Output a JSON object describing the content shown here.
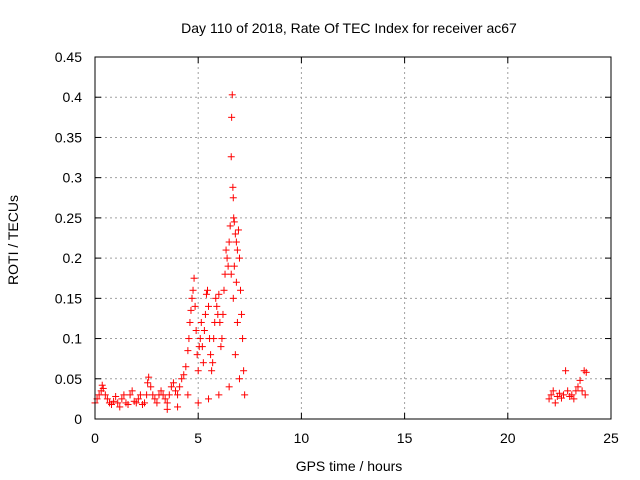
{
  "chart_data": {
    "type": "scatter",
    "title": "Day 110 of 2018, Rate Of TEC Index for receiver ac67",
    "xlabel": "GPS time / hours",
    "ylabel": "ROTI / TECUs",
    "xlim": [
      0,
      25
    ],
    "ylim": [
      0,
      0.45
    ],
    "x_ticks": [
      0,
      5,
      10,
      15,
      20,
      25
    ],
    "y_ticks": [
      0,
      0.05,
      0.1,
      0.15,
      0.2,
      0.25,
      0.3,
      0.35,
      0.4,
      0.45
    ],
    "x_tick_labels": [
      "0",
      "5",
      "10",
      "15",
      "20",
      "25"
    ],
    "y_tick_labels": [
      "0",
      "0.05",
      "0.1",
      "0.15",
      "0.2",
      "0.25",
      "0.3",
      "0.35",
      "0.4",
      "0.45"
    ],
    "grid": true,
    "marker": "+",
    "series_color": "#ff0000",
    "series": [
      {
        "name": "ROTI",
        "points": [
          [
            0.0,
            0.02
          ],
          [
            0.1,
            0.025
          ],
          [
            0.2,
            0.03
          ],
          [
            0.3,
            0.035
          ],
          [
            0.35,
            0.042
          ],
          [
            0.4,
            0.038
          ],
          [
            0.5,
            0.03
          ],
          [
            0.6,
            0.025
          ],
          [
            0.7,
            0.02
          ],
          [
            0.8,
            0.018
          ],
          [
            0.9,
            0.022
          ],
          [
            1.0,
            0.028
          ],
          [
            1.1,
            0.02
          ],
          [
            1.2,
            0.015
          ],
          [
            1.3,
            0.025
          ],
          [
            1.4,
            0.03
          ],
          [
            1.5,
            0.02
          ],
          [
            1.6,
            0.018
          ],
          [
            1.7,
            0.03
          ],
          [
            1.8,
            0.035
          ],
          [
            1.9,
            0.022
          ],
          [
            2.0,
            0.02
          ],
          [
            2.1,
            0.025
          ],
          [
            2.2,
            0.03
          ],
          [
            2.3,
            0.018
          ],
          [
            2.4,
            0.02
          ],
          [
            2.5,
            0.03
          ],
          [
            2.55,
            0.045
          ],
          [
            2.6,
            0.052
          ],
          [
            2.7,
            0.04
          ],
          [
            2.8,
            0.03
          ],
          [
            2.9,
            0.025
          ],
          [
            3.0,
            0.02
          ],
          [
            3.1,
            0.03
          ],
          [
            3.2,
            0.035
          ],
          [
            3.3,
            0.03
          ],
          [
            3.4,
            0.025
          ],
          [
            3.5,
            0.02
          ],
          [
            3.6,
            0.03
          ],
          [
            3.7,
            0.04
          ],
          [
            3.8,
            0.045
          ],
          [
            3.9,
            0.035
          ],
          [
            4.0,
            0.03
          ],
          [
            4.1,
            0.04
          ],
          [
            4.2,
            0.05
          ],
          [
            4.3,
            0.055
          ],
          [
            4.4,
            0.065
          ],
          [
            4.5,
            0.085
          ],
          [
            4.55,
            0.1
          ],
          [
            4.6,
            0.12
          ],
          [
            4.65,
            0.135
          ],
          [
            4.7,
            0.15
          ],
          [
            4.75,
            0.16
          ],
          [
            4.8,
            0.175
          ],
          [
            4.85,
            0.14
          ],
          [
            4.9,
            0.11
          ],
          [
            4.95,
            0.08
          ],
          [
            5.0,
            0.06
          ],
          [
            5.05,
            0.09
          ],
          [
            5.1,
            0.1
          ],
          [
            5.15,
            0.12
          ],
          [
            5.2,
            0.09
          ],
          [
            5.25,
            0.07
          ],
          [
            5.3,
            0.11
          ],
          [
            5.35,
            0.13
          ],
          [
            5.4,
            0.155
          ],
          [
            5.45,
            0.16
          ],
          [
            5.5,
            0.14
          ],
          [
            5.55,
            0.1
          ],
          [
            5.6,
            0.08
          ],
          [
            5.65,
            0.06
          ],
          [
            5.7,
            0.07
          ],
          [
            5.75,
            0.1
          ],
          [
            5.8,
            0.12
          ],
          [
            5.85,
            0.15
          ],
          [
            5.9,
            0.14
          ],
          [
            5.95,
            0.13
          ],
          [
            6.0,
            0.155
          ],
          [
            6.05,
            0.12
          ],
          [
            6.1,
            0.09
          ],
          [
            6.15,
            0.1
          ],
          [
            6.2,
            0.13
          ],
          [
            6.25,
            0.16
          ],
          [
            6.3,
            0.18
          ],
          [
            6.35,
            0.21
          ],
          [
            6.4,
            0.2
          ],
          [
            6.45,
            0.19
          ],
          [
            6.5,
            0.22
          ],
          [
            6.55,
            0.24
          ],
          [
            6.6,
            0.326
          ],
          [
            6.62,
            0.375
          ],
          [
            6.65,
            0.403
          ],
          [
            6.68,
            0.288
          ],
          [
            6.7,
            0.275
          ],
          [
            6.72,
            0.25
          ],
          [
            6.75,
            0.245
          ],
          [
            6.8,
            0.23
          ],
          [
            6.85,
            0.22
          ],
          [
            6.9,
            0.21
          ],
          [
            6.95,
            0.235
          ],
          [
            7.0,
            0.2
          ],
          [
            7.05,
            0.16
          ],
          [
            7.1,
            0.13
          ],
          [
            7.15,
            0.1
          ],
          [
            7.2,
            0.06
          ],
          [
            7.25,
            0.03
          ],
          [
            5.0,
            0.02
          ],
          [
            5.5,
            0.025
          ],
          [
            6.0,
            0.03
          ],
          [
            6.5,
            0.04
          ],
          [
            7.0,
            0.05
          ],
          [
            4.5,
            0.03
          ],
          [
            4.0,
            0.015
          ],
          [
            3.5,
            0.012
          ],
          [
            6.8,
            0.08
          ],
          [
            6.9,
            0.12
          ],
          [
            6.7,
            0.15
          ],
          [
            6.6,
            0.18
          ],
          [
            6.75,
            0.19
          ],
          [
            6.85,
            0.17
          ],
          [
            22.0,
            0.025
          ],
          [
            22.1,
            0.03
          ],
          [
            22.2,
            0.035
          ],
          [
            22.3,
            0.02
          ],
          [
            22.4,
            0.028
          ],
          [
            22.5,
            0.032
          ],
          [
            22.6,
            0.026
          ],
          [
            22.7,
            0.03
          ],
          [
            22.8,
            0.06
          ],
          [
            22.9,
            0.035
          ],
          [
            23.0,
            0.028
          ],
          [
            23.1,
            0.03
          ],
          [
            23.2,
            0.025
          ],
          [
            23.3,
            0.035
          ],
          [
            23.4,
            0.04
          ],
          [
            23.5,
            0.048
          ],
          [
            23.6,
            0.035
          ],
          [
            23.7,
            0.06
          ],
          [
            23.8,
            0.058
          ],
          [
            23.75,
            0.03
          ]
        ]
      }
    ]
  }
}
